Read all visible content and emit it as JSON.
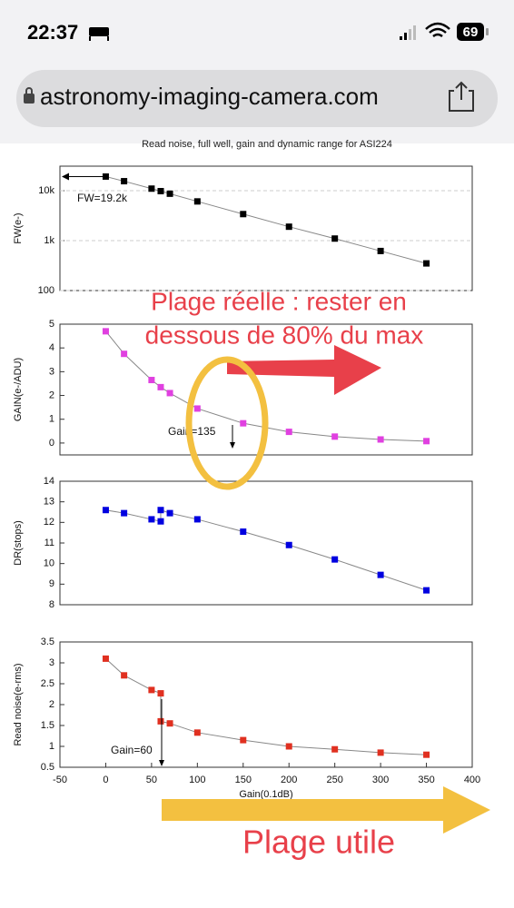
{
  "status_bar": {
    "time": "22:37",
    "battery": "69"
  },
  "browser": {
    "url": "astronomy-imaging-camera.com"
  },
  "figure_title": "Read noise, full well, gain and dynamic range for ASI224",
  "chart_data": [
    {
      "type": "scatter",
      "y_label": "FW(e-)",
      "log_scale": true,
      "annotation": "FW=19.2k",
      "color": "#000000",
      "x": [
        0,
        20,
        50,
        60,
        70,
        100,
        150,
        200,
        250,
        300,
        350
      ],
      "values": [
        19200,
        15500,
        11000,
        9800,
        8700,
        6100,
        3400,
        1900,
        1100,
        620,
        350
      ],
      "xlim": [
        -50,
        400
      ],
      "ylim": [
        100,
        31000
      ],
      "yticks": [
        100,
        {
          "value": 1000,
          "label": "1k"
        },
        {
          "value": 10000,
          "label": "10k"
        }
      ]
    },
    {
      "type": "scatter",
      "y_label": "GAIN(e-/ADU)",
      "log_scale": false,
      "annotation": "Gain=135",
      "color": "#e040e0",
      "x": [
        0,
        20,
        50,
        60,
        70,
        100,
        150,
        200,
        250,
        300,
        350
      ],
      "values": [
        4.7,
        3.75,
        2.65,
        2.35,
        2.1,
        1.45,
        0.83,
        0.47,
        0.27,
        0.15,
        0.08
      ],
      "xlim": [
        -50,
        400
      ],
      "ylim": [
        -0.5,
        5
      ],
      "yticks": [
        0,
        1,
        2,
        3,
        4,
        5
      ]
    },
    {
      "type": "scatter",
      "y_label": "DR(stops)",
      "log_scale": false,
      "color": "#0000e0",
      "x": [
        0,
        20,
        50,
        60,
        60,
        70,
        100,
        150,
        200,
        250,
        300,
        350
      ],
      "values": [
        12.6,
        12.45,
        12.15,
        12.05,
        12.6,
        12.45,
        12.15,
        11.55,
        10.9,
        10.2,
        9.45,
        8.7
      ],
      "xlim": [
        -50,
        400
      ],
      "ylim": [
        8,
        14
      ],
      "yticks": [
        8,
        9,
        10,
        11,
        12,
        13,
        14
      ]
    },
    {
      "type": "scatter",
      "y_label": "Read noise(e-rms)",
      "x_label": "Gain(0.1dB)",
      "log_scale": false,
      "annotation": "Gain=60",
      "color": "#e03020",
      "x": [
        0,
        20,
        50,
        60,
        60,
        70,
        100,
        150,
        200,
        250,
        300,
        350
      ],
      "values": [
        3.1,
        2.7,
        2.35,
        2.27,
        1.6,
        1.55,
        1.33,
        1.15,
        1.0,
        0.93,
        0.85,
        0.8
      ],
      "xlim": [
        -50,
        400
      ],
      "xticks": [
        -50,
        0,
        50,
        100,
        150,
        200,
        250,
        300,
        350,
        400
      ],
      "ylim": [
        0.5,
        3.5
      ],
      "yticks": [
        0.5,
        1.0,
        1.5,
        2.0,
        2.5,
        3.0,
        3.5
      ]
    }
  ],
  "overlay": {
    "range_note": [
      "Plage réelle : rester en",
      "dessous de 80% du max"
    ],
    "useful_range": "Plage utile"
  }
}
